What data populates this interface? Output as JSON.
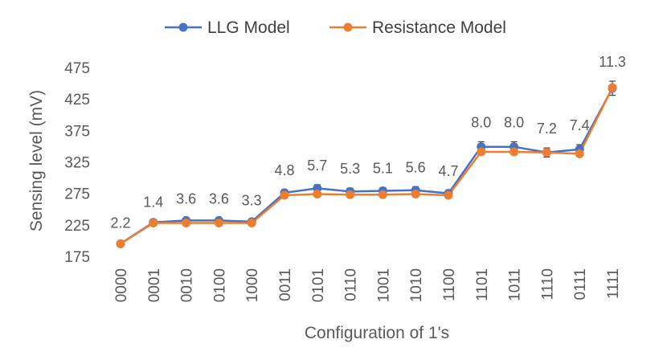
{
  "chart_data": {
    "type": "line",
    "title": "",
    "xlabel": "Configuration of 1's",
    "ylabel": "Sensing level (mV)",
    "ylim": [
      175,
      475
    ],
    "yticks": [
      175,
      225,
      275,
      325,
      375,
      425,
      475
    ],
    "grid": false,
    "legend_position": "top",
    "categories": [
      "0000",
      "0001",
      "0010",
      "0100",
      "1000",
      "0011",
      "0101",
      "0110",
      "1001",
      "1010",
      "1100",
      "1101",
      "1011",
      "1110",
      "0111",
      "1111"
    ],
    "series": [
      {
        "name": "LLG Model",
        "color": "#4472C4",
        "values": [
          195,
          229,
          232,
          232,
          230,
          276,
          283,
          278,
          279,
          280,
          275,
          349,
          349,
          340,
          345,
          442
        ],
        "error": [
          2.2,
          1.4,
          3.6,
          3.6,
          3.3,
          4.8,
          5.7,
          5.3,
          5.1,
          5.6,
          4.7,
          8.0,
          8.0,
          7.2,
          7.4,
          11.3
        ]
      },
      {
        "name": "Resistance Model",
        "color": "#ED7D31",
        "values": [
          195,
          228,
          228,
          228,
          228,
          272,
          274,
          273,
          273,
          274,
          272,
          341,
          341,
          340,
          338,
          443
        ]
      }
    ],
    "data_labels": [
      "2.2",
      "1.4",
      "3.6",
      "3.6",
      "3.3",
      "4.8",
      "5.7",
      "5.3",
      "5.1",
      "5.6",
      "4.7",
      "8.0",
      "8.0",
      "7.2",
      "7.4",
      "11.3"
    ]
  }
}
